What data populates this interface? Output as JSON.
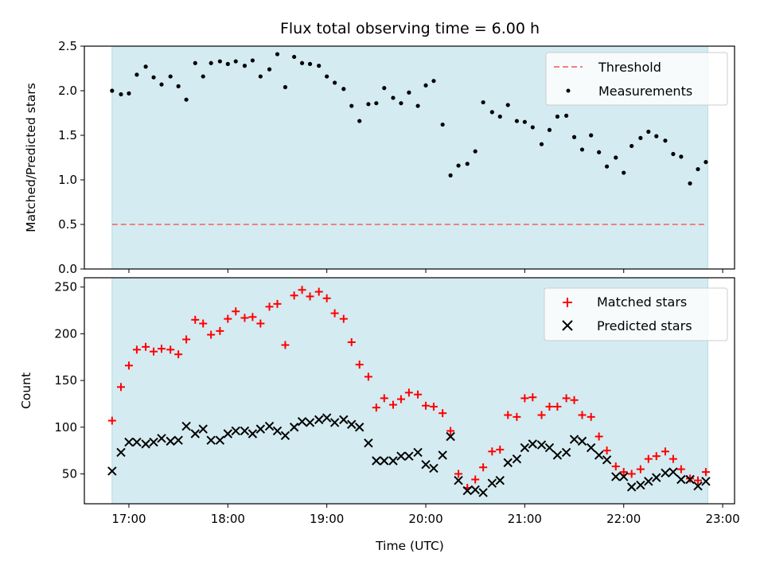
{
  "chart_data": {
    "type": "scatter",
    "title": "Flux total observing time = 6.00 h",
    "xlabel": "Time (UTC)",
    "x_ticks": [
      "17:00",
      "18:00",
      "19:00",
      "20:00",
      "21:00",
      "22:00",
      "23:00"
    ],
    "x_tick_hours": [
      17,
      18,
      19,
      20,
      21,
      22,
      23
    ],
    "xlim": [
      16.55,
      23.12
    ],
    "observing_window": [
      16.83,
      22.85
    ],
    "colors": {
      "window": "#d4ebf1",
      "threshold": "#f08080",
      "measurements": "#000000",
      "matched": "#ff0000",
      "predicted": "#000000"
    },
    "panels": [
      {
        "ylabel": "Matched/Predicted stars",
        "ylim": [
          0,
          2.5
        ],
        "yticks": [
          0.0,
          0.5,
          1.0,
          1.5,
          2.0,
          2.5
        ],
        "ytick_labels": [
          "0.0",
          "0.5",
          "1.0",
          "1.5",
          "2.0",
          "2.5"
        ],
        "threshold": {
          "name": "Threshold",
          "value": 0.5,
          "x_range": [
            16.83,
            22.83
          ]
        },
        "legend": [
          "Threshold",
          "Measurements"
        ],
        "series": [
          {
            "name": "Measurements",
            "x": [
              16.83,
              16.92,
              17.0,
              17.08,
              17.17,
              17.25,
              17.33,
              17.42,
              17.5,
              17.58,
              17.67,
              17.75,
              17.83,
              17.92,
              18.0,
              18.08,
              18.17,
              18.25,
              18.33,
              18.42,
              18.5,
              18.58,
              18.67,
              18.75,
              18.83,
              18.92,
              19.0,
              19.08,
              19.17,
              19.25,
              19.33,
              19.42,
              19.5,
              19.58,
              19.67,
              19.75,
              19.83,
              19.92,
              20.0,
              20.08,
              20.17,
              20.25,
              20.33,
              20.42,
              20.5,
              20.58,
              20.67,
              20.75,
              20.83,
              20.92,
              21.0,
              21.08,
              21.17,
              21.25,
              21.33,
              21.42,
              21.5,
              21.58,
              21.67,
              21.75,
              21.83,
              21.92,
              22.0,
              22.08,
              22.17,
              22.25,
              22.33,
              22.42,
              22.5,
              22.58,
              22.67,
              22.75,
              22.83
            ],
            "y": [
              2.0,
              1.96,
              1.97,
              2.18,
              2.27,
              2.15,
              2.07,
              2.16,
              2.05,
              1.9,
              2.31,
              2.16,
              2.31,
              2.33,
              2.3,
              2.33,
              2.28,
              2.34,
              2.16,
              2.24,
              2.41,
              2.04,
              2.38,
              2.31,
              2.3,
              2.28,
              2.16,
              2.09,
              2.02,
              1.83,
              1.66,
              1.85,
              1.86,
              2.03,
              1.92,
              1.86,
              1.98,
              1.83,
              2.06,
              2.11,
              1.62,
              1.05,
              1.16,
              1.18,
              1.32,
              1.87,
              1.76,
              1.71,
              1.84,
              1.66,
              1.65,
              1.59,
              1.4,
              1.56,
              1.71,
              1.72,
              1.48,
              1.34,
              1.5,
              1.31,
              1.15,
              1.25,
              1.08,
              1.38,
              1.47,
              1.54,
              1.49,
              1.44,
              1.29,
              1.26,
              0.96,
              1.12,
              1.2
            ]
          }
        ]
      },
      {
        "ylabel": "Count",
        "ylim": [
          18,
          260
        ],
        "yticks": [
          50,
          100,
          150,
          200,
          250
        ],
        "ytick_labels": [
          "50",
          "100",
          "150",
          "200",
          "250"
        ],
        "legend": [
          "Matched stars",
          "Predicted stars"
        ],
        "series": [
          {
            "name": "Matched stars",
            "x": [
              16.83,
              16.92,
              17.0,
              17.08,
              17.17,
              17.25,
              17.33,
              17.42,
              17.5,
              17.58,
              17.67,
              17.75,
              17.83,
              17.92,
              18.0,
              18.08,
              18.17,
              18.25,
              18.33,
              18.42,
              18.5,
              18.58,
              18.67,
              18.75,
              18.83,
              18.92,
              19.0,
              19.08,
              19.17,
              19.25,
              19.33,
              19.42,
              19.5,
              19.58,
              19.67,
              19.75,
              19.83,
              19.92,
              20.0,
              20.08,
              20.17,
              20.25,
              20.33,
              20.42,
              20.5,
              20.58,
              20.67,
              20.75,
              20.83,
              20.92,
              21.0,
              21.08,
              21.17,
              21.25,
              21.33,
              21.42,
              21.5,
              21.58,
              21.67,
              21.75,
              21.83,
              21.92,
              22.0,
              22.08,
              22.17,
              22.25,
              22.33,
              22.42,
              22.5,
              22.58,
              22.67,
              22.75,
              22.83
            ],
            "y": [
              107,
              143,
              166,
              183,
              186,
              181,
              184,
              183,
              178,
              194,
              215,
              211,
              199,
              203,
              216,
              224,
              217,
              218,
              211,
              229,
              232,
              188,
              241,
              247,
              240,
              245,
              238,
              222,
              216,
              191,
              167,
              154,
              121,
              131,
              124,
              130,
              137,
              135,
              123,
              122,
              115,
              96,
              50,
              35,
              44,
              57,
              74,
              76,
              113,
              111,
              131,
              132,
              113,
              122,
              122,
              131,
              129,
              113,
              111,
              90,
              75,
              58,
              52,
              50,
              55,
              66,
              69,
              74,
              66,
              55,
              45,
              43,
              52
            ]
          },
          {
            "name": "Predicted stars",
            "x": [
              16.83,
              16.92,
              17.0,
              17.08,
              17.17,
              17.25,
              17.33,
              17.42,
              17.5,
              17.58,
              17.67,
              17.75,
              17.83,
              17.92,
              18.0,
              18.08,
              18.17,
              18.25,
              18.33,
              18.42,
              18.5,
              18.58,
              18.67,
              18.75,
              18.83,
              18.92,
              19.0,
              19.08,
              19.17,
              19.25,
              19.33,
              19.42,
              19.5,
              19.58,
              19.67,
              19.75,
              19.83,
              19.92,
              20.0,
              20.08,
              20.17,
              20.25,
              20.33,
              20.42,
              20.5,
              20.58,
              20.67,
              20.75,
              20.83,
              20.92,
              21.0,
              21.08,
              21.17,
              21.25,
              21.33,
              21.42,
              21.5,
              21.58,
              21.67,
              21.75,
              21.83,
              21.92,
              22.0,
              22.08,
              22.17,
              22.25,
              22.33,
              22.42,
              22.5,
              22.58,
              22.67,
              22.75,
              22.83
            ],
            "y": [
              53,
              73,
              84,
              84,
              82,
              84,
              88,
              85,
              86,
              101,
              93,
              98,
              86,
              86,
              93,
              96,
              96,
              93,
              98,
              101,
              96,
              91,
              100,
              106,
              105,
              108,
              110,
              105,
              108,
              103,
              100,
              83,
              64,
              64,
              64,
              69,
              69,
              73,
              60,
              56,
              70,
              90,
              43,
              32,
              33,
              30,
              40,
              43,
              62,
              66,
              78,
              82,
              81,
              78,
              70,
              73,
              87,
              85,
              78,
              70,
              65,
              47,
              47,
              36,
              38,
              42,
              46,
              51,
              52,
              44,
              44,
              37,
              42
            ]
          }
        ]
      }
    ]
  }
}
